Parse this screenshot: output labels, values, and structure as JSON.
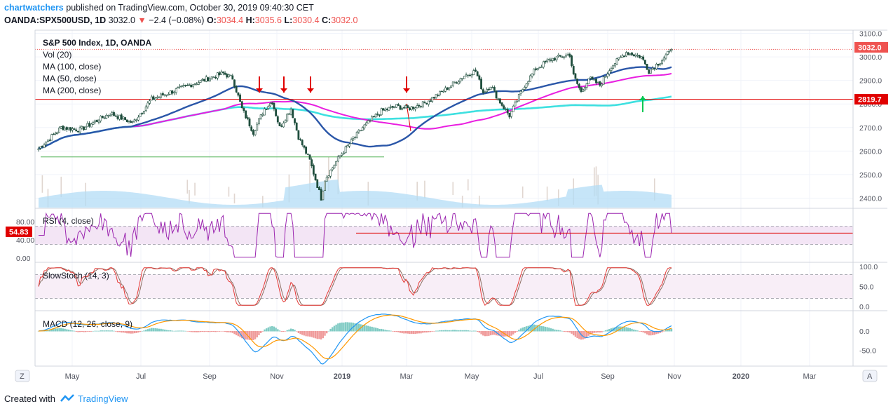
{
  "header": {
    "publisher": "chartwatchers",
    "published_text": "published on TradingView.com, October 30, 2019 09:40:30 CET",
    "symbol": "OANDA:SPX500USD, 1D",
    "last": "3032.0",
    "change": "−2.4 (−0.08%)",
    "o_label": "O:",
    "o_value": "3034.4",
    "h_label": "H:",
    "h_value": "3035.6",
    "l_label": "L:",
    "l_value": "3030.4",
    "c_label": "C:",
    "c_value": "3032.0"
  },
  "legend": {
    "title": "S&P 500 Index, 1D, OANDA",
    "vol": "Vol (20)",
    "ma100": "MA (100, close)",
    "ma50": "MA (50, close)",
    "ma200": "MA (200, close)"
  },
  "panes": {
    "rsi_label": "RSI (4, close)",
    "stoch_label": "SlowStoch (14, 3)",
    "macd_label": "MACD (12, 26, close, 9)"
  },
  "price_badges": {
    "last": "3032.0",
    "level": "2819.7"
  },
  "rsi_badge": "54.83",
  "bottom": {
    "left_btn": "Z",
    "right_btn": "A"
  },
  "footer": {
    "created": "Created with",
    "brand": "TradingView"
  },
  "colors": {
    "up": "#26a69a",
    "down": "#ef5350",
    "candle_body": "#1e4d3c",
    "ma100": "#e91ee0",
    "ma50": "#2a56a8",
    "ma200": "#3ee0e0",
    "rsi": "#9c27b0",
    "stoch_k": "#e53935",
    "stoch_d": "#8d6e63",
    "macd": "#2196f3",
    "signal": "#ff9800",
    "arrow_red": "#e00000",
    "arrow_green": "#00c853"
  },
  "chart_data": {
    "type": "candlestick",
    "title": "S&P 500 Index, 1D, OANDA",
    "y_ticks": [
      3100,
      3000,
      2900,
      2800,
      2700,
      2600,
      2500,
      2400
    ],
    "y_range": [
      2370,
      3110
    ],
    "x_ticks": [
      "May",
      "Jul",
      "Sep",
      "Nov",
      "2019",
      "Mar",
      "May",
      "Jul",
      "Sep",
      "Nov",
      "2020",
      "Mar"
    ],
    "close_waypoints": [
      [
        0,
        2610
      ],
      [
        12,
        2700
      ],
      [
        22,
        2690
      ],
      [
        38,
        2760
      ],
      [
        50,
        2720
      ],
      [
        60,
        2820
      ],
      [
        80,
        2880
      ],
      [
        98,
        2930
      ],
      [
        103,
        2910
      ],
      [
        108,
        2780
      ],
      [
        114,
        2680
      ],
      [
        120,
        2780
      ],
      [
        124,
        2810
      ],
      [
        128,
        2700
      ],
      [
        134,
        2780
      ],
      [
        138,
        2660
      ],
      [
        144,
        2560
      ],
      [
        150,
        2400
      ],
      [
        152,
        2480
      ],
      [
        160,
        2580
      ],
      [
        172,
        2700
      ],
      [
        182,
        2770
      ],
      [
        190,
        2790
      ],
      [
        196,
        2780
      ],
      [
        204,
        2800
      ],
      [
        214,
        2850
      ],
      [
        226,
        2920
      ],
      [
        232,
        2940
      ],
      [
        236,
        2850
      ],
      [
        240,
        2880
      ],
      [
        244,
        2820
      ],
      [
        250,
        2750
      ],
      [
        258,
        2880
      ],
      [
        264,
        2950
      ],
      [
        272,
        2990
      ],
      [
        282,
        3010
      ],
      [
        284,
        2920
      ],
      [
        288,
        2850
      ],
      [
        292,
        2910
      ],
      [
        298,
        2880
      ],
      [
        304,
        2960
      ],
      [
        312,
        3020
      ],
      [
        320,
        3000
      ],
      [
        324,
        2940
      ],
      [
        330,
        2980
      ],
      [
        336,
        3030
      ]
    ],
    "levels": {
      "last": 3032.0,
      "resistance": 2819.7,
      "support": 2575
    },
    "rsi": {
      "ticks": [
        80.0,
        40.0,
        0.0
      ],
      "bands": [
        70,
        30
      ],
      "last": 54.83
    },
    "stoch": {
      "ticks": [
        100.0,
        50.0,
        0.0
      ],
      "bands": [
        80,
        20
      ]
    },
    "macd": {
      "ticks": [
        0.0,
        -50.0
      ]
    }
  }
}
